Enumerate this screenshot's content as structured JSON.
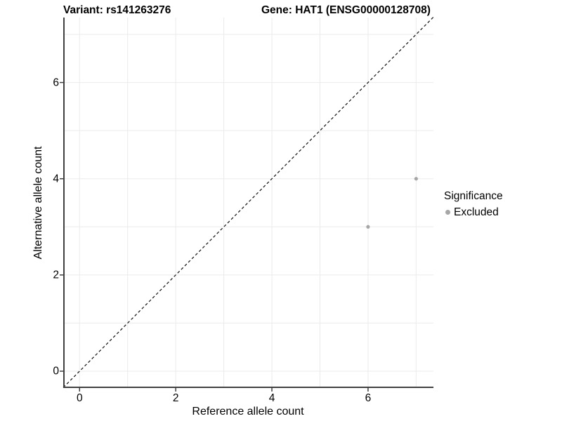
{
  "titles": {
    "left": "Variant: rs141263276",
    "right": "Gene: HAT1 (ENSG00000128708)"
  },
  "axes": {
    "xlabel": "Reference allele count",
    "ylabel": "Alternative allele count"
  },
  "legend": {
    "title": "Significance",
    "items": [
      {
        "label": "Excluded",
        "color": "#a6a6a6"
      }
    ]
  },
  "chart_data": {
    "type": "scatter",
    "title_left": "Variant: rs141263276",
    "title_right": "Gene: HAT1 (ENSG00000128708)",
    "xlabel": "Reference allele count",
    "ylabel": "Alternative allele count",
    "xlim": [
      -0.34,
      7.36
    ],
    "ylim": [
      -0.35,
      7.35
    ],
    "x_ticks": [
      0,
      2,
      4,
      6
    ],
    "y_ticks": [
      0,
      2,
      4,
      6
    ],
    "grid_values": [
      0,
      1,
      2,
      3,
      4,
      5,
      6,
      7
    ],
    "grid": true,
    "legend_position": "right",
    "series": [
      {
        "name": "Excluded",
        "points": [
          {
            "x": 6,
            "y": 3
          },
          {
            "x": 7,
            "y": 4
          }
        ]
      }
    ],
    "reference_line": {
      "slope": 1,
      "intercept": 0,
      "style": "dashed",
      "color": "#111111"
    },
    "colors": {
      "point": "#a6a6a6",
      "grid": "#ebebeb",
      "axis": "#404040",
      "text": "#000000"
    }
  }
}
